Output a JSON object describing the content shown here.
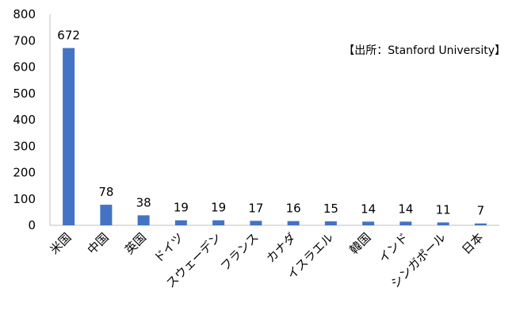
{
  "chart_data": {
    "type": "bar",
    "categories": [
      "米国",
      "中国",
      "英国",
      "ドイツ",
      "スウェーデン",
      "フランス",
      "カナダ",
      "イスラエル",
      "韓国",
      "インド",
      "シンガポール",
      "日本"
    ],
    "values": [
      672,
      78,
      38,
      19,
      19,
      17,
      16,
      15,
      14,
      14,
      11,
      7
    ],
    "data_labels": [
      "672",
      "78",
      "38",
      "19",
      "19",
      "17",
      "16",
      "15",
      "14",
      "14",
      "11",
      "7"
    ],
    "ylim": [
      0,
      800
    ],
    "yticks": [
      "0",
      "100",
      "200",
      "300",
      "400",
      "500",
      "600",
      "700",
      "800"
    ],
    "annotation": "【出所：Stanford University】",
    "bar_color": "#4472C4",
    "grid": false,
    "legend": "none"
  }
}
